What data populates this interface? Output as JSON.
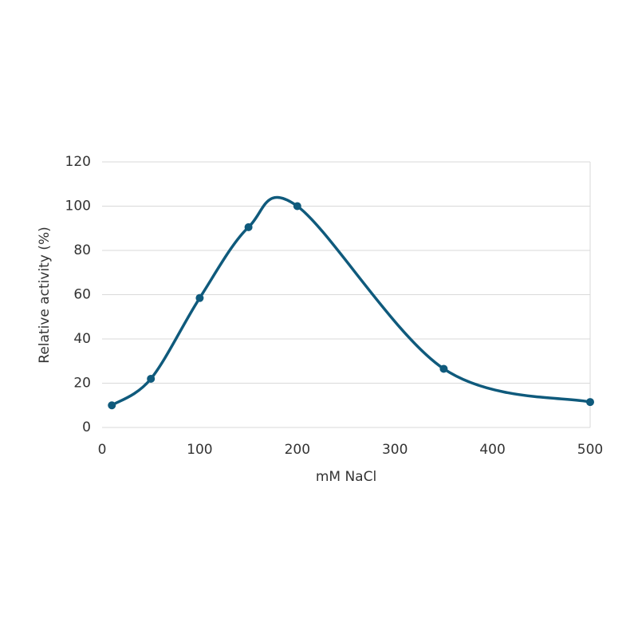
{
  "chart_data": {
    "type": "scatter",
    "x_label": "mM NaCl",
    "y_label": "Relative activity (%)",
    "series": [
      {
        "color": "#0f5a7c",
        "x": [
          10,
          50,
          100,
          150,
          200,
          350,
          500
        ],
        "values": [
          10,
          22,
          58.5,
          90.5,
          100,
          26.5,
          11.5
        ]
      }
    ],
    "xlim": [
      0,
      500
    ],
    "xticks": [
      0,
      100,
      200,
      300,
      400,
      500
    ],
    "ylim": [
      0,
      120
    ],
    "yticks": [
      0,
      20,
      40,
      60,
      80,
      100,
      120
    ],
    "grid": true,
    "smooth": true
  }
}
